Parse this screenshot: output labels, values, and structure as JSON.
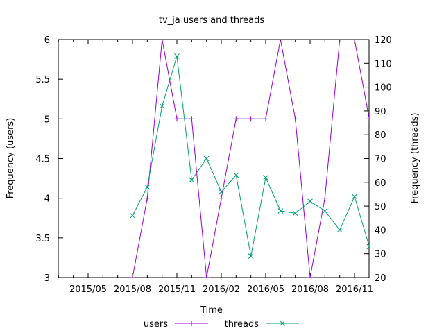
{
  "chart_data": {
    "type": "line",
    "title": "tv_ja users and threads",
    "xlabel": "Time",
    "ylabel": "Frequency (users)",
    "y2label": "Frequency (threads)",
    "x_ticks": [
      "2015/05",
      "2015/08",
      "2015/11",
      "2016/02",
      "2016/05",
      "2016/08",
      "2016/11"
    ],
    "ylim": [
      3,
      6
    ],
    "y_ticks": [
      "3",
      "3.5",
      "4",
      "4.5",
      "5",
      "5.5",
      "6"
    ],
    "y2lim": [
      20,
      120
    ],
    "y2_ticks": [
      "20",
      "30",
      "40",
      "50",
      "60",
      "70",
      "80",
      "90",
      "100",
      "110",
      "120"
    ],
    "grid": false,
    "legend_position": "bottom",
    "series": [
      {
        "name": "users",
        "axis": "left",
        "color": "#9400d3",
        "marker": "plus",
        "x": [
          "2015/08",
          "2015/09",
          "2015/10",
          "2015/11",
          "2015/12",
          "2016/01",
          "2016/02",
          "2016/03",
          "2016/04",
          "2016/05",
          "2016/06",
          "2016/07",
          "2016/08",
          "2016/09",
          "2016/10",
          "2016/11",
          "2016/12"
        ],
        "values": [
          3,
          4,
          6,
          5,
          5,
          3,
          4,
          5,
          5,
          5,
          6,
          5,
          3,
          4,
          6,
          6,
          5
        ]
      },
      {
        "name": "threads",
        "axis": "right",
        "color": "#009e73",
        "marker": "cross",
        "x": [
          "2015/08",
          "2015/09",
          "2015/10",
          "2015/11",
          "2015/12",
          "2016/01",
          "2016/02",
          "2016/03",
          "2016/04",
          "2016/05",
          "2016/06",
          "2016/07",
          "2016/08",
          "2016/09",
          "2016/10",
          "2016/11",
          "2016/12"
        ],
        "values": [
          46,
          58,
          92,
          113,
          61,
          70,
          56,
          63,
          29,
          62,
          48,
          47,
          52,
          48,
          40,
          54,
          33
        ]
      }
    ]
  }
}
